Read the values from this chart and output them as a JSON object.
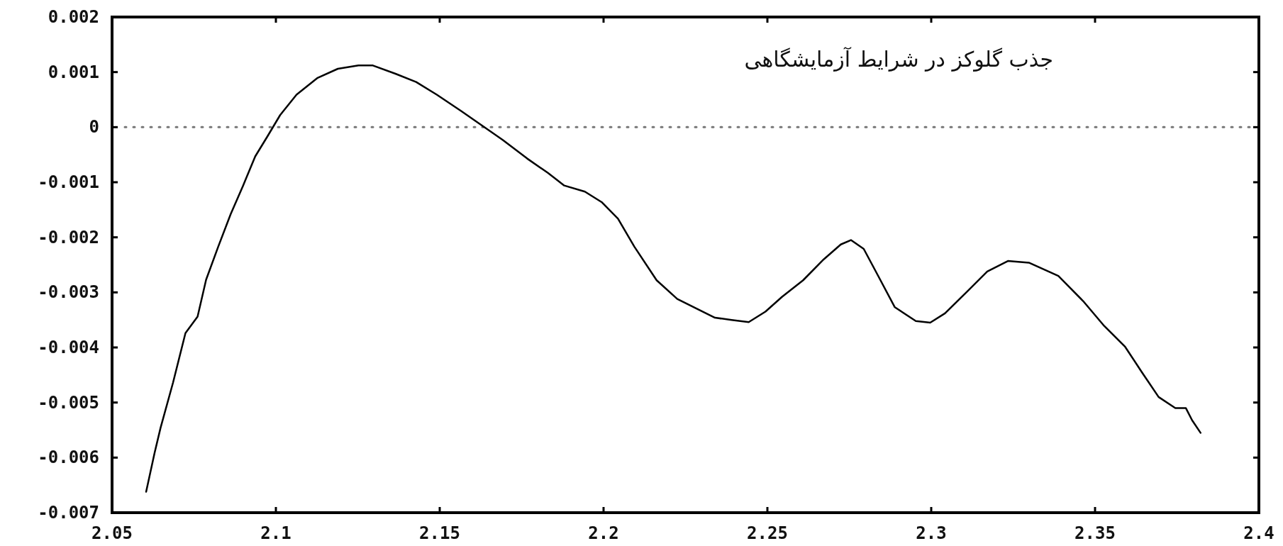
{
  "chart_data": {
    "type": "line",
    "color": "#000000",
    "x": [
      2.0604,
      2.063,
      2.0648,
      2.0686,
      2.0724,
      2.0761,
      2.0787,
      2.0824,
      2.0862,
      2.09,
      2.0937,
      2.0975,
      2.1013,
      2.1063,
      2.1126,
      2.1189,
      2.1252,
      2.1296,
      2.1365,
      2.1428,
      2.1491,
      2.1566,
      2.1629,
      2.1692,
      2.1767,
      2.183,
      2.188,
      2.1943,
      2.1994,
      2.2044,
      2.2094,
      2.2162,
      2.2225,
      2.2289,
      2.234,
      2.2391,
      2.2443,
      2.2494,
      2.2545,
      2.2609,
      2.2672,
      2.2724,
      2.2755,
      2.2794,
      2.2838,
      2.2889,
      2.2953,
      2.2997,
      2.3042,
      2.3107,
      2.3171,
      2.3234,
      2.3298,
      2.3388,
      2.3464,
      2.3528,
      2.3592,
      2.3643,
      2.3694,
      2.3745,
      2.3777,
      2.3796,
      2.3822
    ],
    "values": [
      -0.00662,
      -0.00591,
      -0.00546,
      -0.00464,
      -0.00374,
      -0.00344,
      -0.00277,
      -0.00217,
      -0.00158,
      -0.00106,
      -0.00053,
      -0.00016,
      0.00022,
      0.00059,
      0.00089,
      0.00106,
      0.00112,
      0.00112,
      0.00097,
      0.00082,
      0.00059,
      0.00029,
      3e-05,
      -0.00023,
      -0.00057,
      -0.00083,
      -0.00106,
      -0.00117,
      -0.00136,
      -0.00166,
      -0.00217,
      -0.00278,
      -0.00312,
      -0.00331,
      -0.00346,
      -0.0035,
      -0.00354,
      -0.00335,
      -0.00308,
      -0.00278,
      -0.0024,
      -0.00213,
      -0.00205,
      -0.00221,
      -0.0027,
      -0.00327,
      -0.00352,
      -0.00355,
      -0.00338,
      -0.003,
      -0.00262,
      -0.00243,
      -0.00246,
      -0.0027,
      -0.00316,
      -0.00361,
      -0.00399,
      -0.00445,
      -0.0049,
      -0.0051,
      -0.0051,
      -0.00532,
      -0.00555
    ],
    "xlim": [
      2.05,
      2.4
    ],
    "ylim": [
      -0.007,
      0.002
    ],
    "xticks": [
      2.05,
      2.1,
      2.15,
      2.2,
      2.25,
      2.3,
      2.35,
      2.4
    ],
    "yticks": [
      -0.007,
      -0.006,
      -0.005,
      -0.004,
      -0.003,
      -0.002,
      -0.001,
      0,
      0.001,
      0.002
    ],
    "ref_lines": [
      {
        "axis": "y",
        "value": 0,
        "color": "#777777",
        "line_style": "dotted"
      }
    ],
    "annotations": [
      "جذب گلوکز در شرایط آزمایشگاهی"
    ]
  }
}
